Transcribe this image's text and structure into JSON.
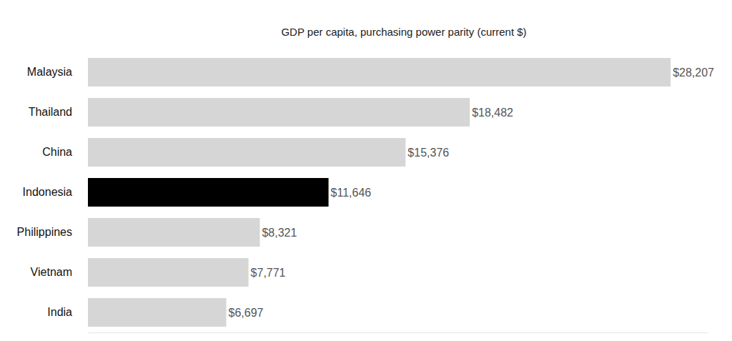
{
  "chart_data": {
    "type": "bar",
    "orientation": "horizontal",
    "title": "GDP per capita, purchasing power parity (current $)",
    "categories": [
      "Malaysia",
      "Thailand",
      "China",
      "Indonesia",
      "Philippines",
      "Vietnam",
      "India"
    ],
    "values": [
      28207,
      18482,
      15376,
      11646,
      8321,
      7771,
      6697
    ],
    "value_labels": [
      "$28,207",
      "$18,482",
      "$15,376",
      "$11,646",
      "$8,321",
      "$7,771",
      "$6,697"
    ],
    "colors": [
      "#d6d6d6",
      "#d6d6d6",
      "#d6d6d6",
      "#000000",
      "#d6d6d6",
      "#d6d6d6",
      "#d6d6d6"
    ],
    "xlim": [
      0,
      30000
    ],
    "xticks": [],
    "grid": false,
    "data_labels": true,
    "tick_labels": "y"
  }
}
